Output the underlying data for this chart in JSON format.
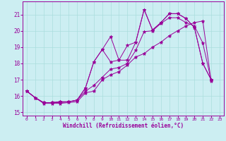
{
  "bg_color": "#cceef2",
  "grid_color": "#aadddd",
  "line_color": "#990099",
  "marker_color": "#990099",
  "xlabel": "Windchill (Refroidissement éolien,°C)",
  "xlabel_color": "#990099",
  "tick_color": "#990099",
  "spine_color": "#990099",
  "xlim": [
    -0.5,
    23.5
  ],
  "ylim": [
    14.8,
    21.8
  ],
  "yticks": [
    15,
    16,
    17,
    18,
    19,
    20,
    21
  ],
  "xticks": [
    0,
    1,
    2,
    3,
    4,
    5,
    6,
    7,
    8,
    9,
    10,
    11,
    12,
    13,
    14,
    15,
    16,
    17,
    18,
    19,
    20,
    21,
    22,
    23
  ],
  "series": [
    [
      16.3,
      15.9,
      15.55,
      15.55,
      15.55,
      15.6,
      15.65,
      16.2,
      16.3,
      17.0,
      17.3,
      17.5,
      17.9,
      18.4,
      18.6,
      19.0,
      19.3,
      19.7,
      20.0,
      20.3,
      20.5,
      20.6,
      16.9
    ],
    [
      16.3,
      15.9,
      15.6,
      15.6,
      15.6,
      15.65,
      15.75,
      16.3,
      16.65,
      17.15,
      17.65,
      17.75,
      18.0,
      18.8,
      19.95,
      20.0,
      20.45,
      20.8,
      20.8,
      20.5,
      20.3,
      19.25,
      16.95
    ],
    [
      16.3,
      15.9,
      15.6,
      15.6,
      15.65,
      15.65,
      15.75,
      16.5,
      18.1,
      18.85,
      18.1,
      18.2,
      18.2,
      19.3,
      21.3,
      20.05,
      20.5,
      21.05,
      21.05,
      20.75,
      20.2,
      18.0,
      17.0
    ],
    [
      16.3,
      15.9,
      15.6,
      15.6,
      15.65,
      15.65,
      15.75,
      16.5,
      18.1,
      18.85,
      19.65,
      18.2,
      19.1,
      19.3,
      21.3,
      20.05,
      20.5,
      21.05,
      21.05,
      20.75,
      20.2,
      18.0,
      17.0
    ]
  ]
}
